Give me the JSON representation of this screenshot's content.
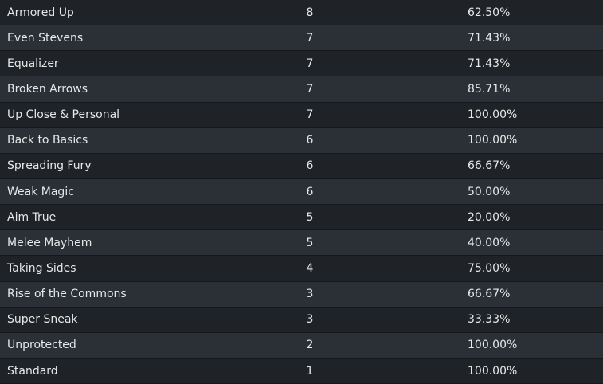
{
  "table": {
    "rows": [
      [
        "Armored Up",
        8,
        "62.50%"
      ],
      [
        "Even Stevens",
        7,
        "71.43%"
      ],
      [
        "Equalizer",
        7,
        "71.43%"
      ],
      [
        "Broken Arrows",
        7,
        "85.71%"
      ],
      [
        "Up Close & Personal",
        7,
        "100.00%"
      ],
      [
        "Back to Basics",
        6,
        "100.00%"
      ],
      [
        "Spreading Fury",
        6,
        "66.67%"
      ],
      [
        "Weak Magic",
        6,
        "50.00%"
      ],
      [
        "Aim True",
        5,
        "20.00%"
      ],
      [
        "Melee Mayhem",
        5,
        "40.00%"
      ],
      [
        "Taking Sides",
        4,
        "75.00%"
      ],
      [
        "Rise of the Commons",
        3,
        "66.67%"
      ],
      [
        "Super Sneak",
        3,
        "33.33%"
      ],
      [
        "Unprotected",
        2,
        "100.00%"
      ],
      [
        "Standard",
        1,
        "100.00%"
      ]
    ]
  }
}
